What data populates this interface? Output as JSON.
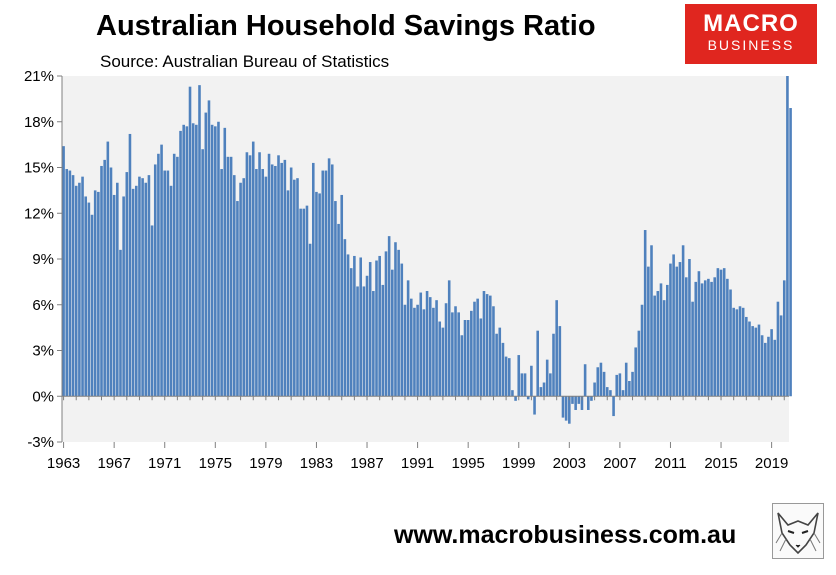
{
  "header": {
    "title": "Australian Household Savings Ratio",
    "subtitle": "Source: Australian Bureau of Statistics"
  },
  "logo": {
    "line1": "MACRO",
    "line2": "BUSINESS",
    "color": "#e0261f"
  },
  "footer": {
    "url": "www.macrobusiness.com.au",
    "fox_icon": "fox-icon"
  },
  "chart_data": {
    "type": "bar",
    "bar_color": "#4f81bd",
    "background_color": "#f2f2f2",
    "grid": false,
    "x_start_year": 1963,
    "x_end_year": 2020.5,
    "periods_per_year": 4,
    "xticks": [
      1963,
      1967,
      1971,
      1975,
      1979,
      1983,
      1987,
      1991,
      1995,
      1999,
      2003,
      2007,
      2011,
      2015,
      2019
    ],
    "ylim": [
      -3,
      21
    ],
    "yticks": [
      -3,
      0,
      3,
      6,
      9,
      12,
      15,
      18,
      21
    ],
    "ytick_labels": [
      "-3%",
      "0%",
      "3%",
      "6%",
      "9%",
      "12%",
      "15%",
      "18%",
      "21%"
    ],
    "values": [
      16.4,
      14.9,
      14.8,
      14.5,
      13.8,
      14.0,
      14.4,
      13.1,
      12.7,
      11.9,
      13.5,
      13.4,
      15.1,
      15.5,
      16.7,
      15.0,
      13.2,
      14.0,
      9.6,
      13.1,
      14.7,
      17.2,
      13.6,
      13.8,
      14.4,
      14.3,
      14.0,
      14.5,
      11.2,
      15.2,
      15.9,
      16.5,
      14.8,
      14.8,
      13.8,
      15.9,
      15.7,
      17.4,
      17.8,
      17.7,
      20.3,
      17.9,
      17.8,
      20.4,
      16.2,
      18.6,
      19.4,
      17.8,
      17.7,
      18.0,
      14.9,
      17.6,
      15.7,
      15.7,
      14.5,
      12.8,
      14.0,
      14.3,
      16.0,
      15.8,
      16.7,
      14.9,
      16.0,
      14.9,
      14.4,
      15.9,
      15.2,
      15.1,
      15.8,
      15.3,
      15.5,
      13.5,
      15.0,
      14.2,
      14.3,
      12.3,
      12.3,
      12.5,
      10.0,
      15.3,
      13.4,
      13.3,
      14.8,
      14.8,
      15.6,
      15.2,
      12.8,
      11.3,
      13.2,
      10.3,
      9.3,
      8.4,
      9.2,
      7.2,
      9.1,
      7.2,
      7.9,
      8.8,
      6.9,
      8.9,
      9.2,
      7.3,
      9.5,
      10.5,
      8.3,
      10.1,
      9.6,
      8.7,
      6.0,
      7.6,
      6.4,
      5.8,
      6.0,
      6.8,
      5.7,
      6.9,
      6.5,
      5.8,
      6.3,
      4.9,
      4.5,
      6.1,
      7.6,
      5.5,
      5.9,
      5.5,
      4.0,
      5.0,
      5.0,
      5.6,
      6.2,
      6.4,
      5.1,
      6.9,
      6.7,
      6.6,
      5.9,
      4.1,
      4.5,
      3.5,
      2.6,
      2.5,
      0.4,
      -0.3,
      2.7,
      1.5,
      1.5,
      -0.2,
      2.0,
      -1.2,
      4.3,
      0.6,
      0.9,
      2.4,
      1.5,
      4.1,
      6.3,
      4.6,
      -1.4,
      -1.6,
      -1.8,
      -0.5,
      -0.9,
      -0.5,
      -0.9,
      2.1,
      -0.9,
      -0.3,
      0.9,
      1.9,
      2.2,
      1.6,
      0.6,
      0.4,
      -1.3,
      1.4,
      1.5,
      0.4,
      2.2,
      1.0,
      1.6,
      3.2,
      4.3,
      6.0,
      10.9,
      8.5,
      9.9,
      6.6,
      6.9,
      7.4,
      6.3,
      7.3,
      8.7,
      9.3,
      8.5,
      8.8,
      9.9,
      7.8,
      9.0,
      6.2,
      7.5,
      8.2,
      7.4,
      7.6,
      7.7,
      7.5,
      7.8,
      8.4,
      8.3,
      8.4,
      7.7,
      7.0,
      5.8,
      5.7,
      5.9,
      5.8,
      5.2,
      4.9,
      4.6,
      4.5,
      4.7,
      4.0,
      3.5,
      3.9,
      4.4,
      3.7,
      6.2,
      5.3,
      7.6,
      21.1,
      18.9
    ]
  }
}
